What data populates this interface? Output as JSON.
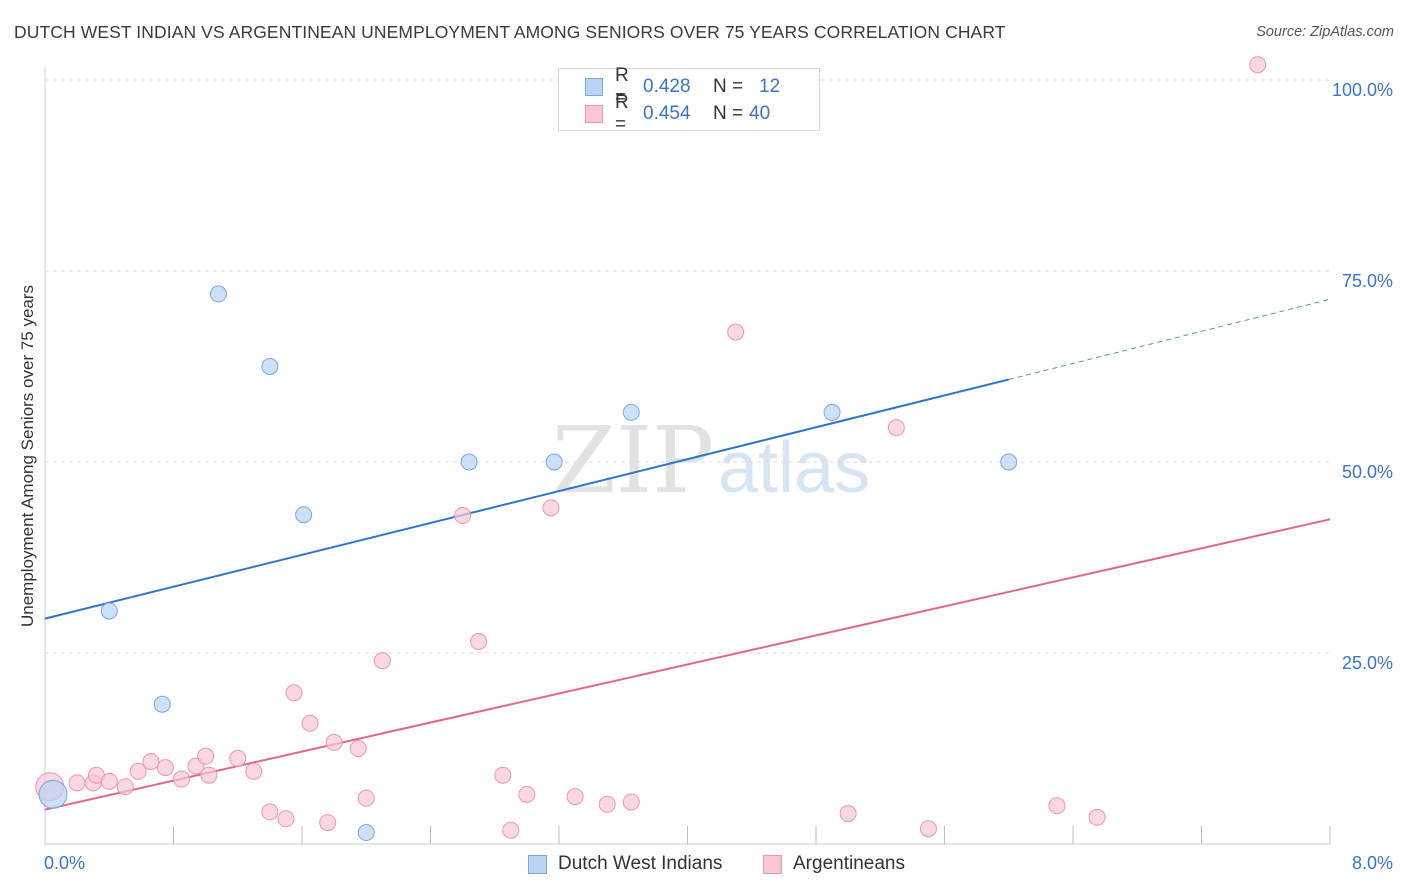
{
  "title": "DUTCH WEST INDIAN VS ARGENTINEAN UNEMPLOYMENT AMONG SENIORS OVER 75 YEARS CORRELATION CHART",
  "source": "Source: ZipAtlas.com",
  "watermark": {
    "zip": "ZIP",
    "atlas": "atlas"
  },
  "legend": {
    "series1": {
      "r_label": "R =",
      "r_value": "0.428",
      "n_label": "N =",
      "n_value": "12"
    },
    "series2": {
      "r_label": "R =",
      "r_value": "0.454",
      "n_label": "N =",
      "n_value": "40"
    }
  },
  "colors": {
    "blue_fill": "#b9d3f3",
    "blue_stroke": "#7aa7de",
    "blue_line": "#2f74c8",
    "pink_fill": "#f9c6d4",
    "pink_stroke": "#ec96b0",
    "pink_line": "#e0668f",
    "grid": "#dddddd",
    "axis_text": "#3a74c4"
  },
  "chart_data": {
    "type": "scatter",
    "title": "DUTCH WEST INDIAN VS ARGENTINEAN UNEMPLOYMENT AMONG SENIORS OVER 75 YEARS CORRELATION CHART",
    "xlabel": "",
    "ylabel": "Unemployment Among Seniors over 75 years",
    "xlim": [
      0,
      8
    ],
    "ylim": [
      0,
      100
    ],
    "x_tick_labels": [
      {
        "value": 0,
        "label": "0.0%"
      },
      {
        "value": 8,
        "label": "8.0%"
      }
    ],
    "x_minor_ticks": [
      0.8,
      1.6,
      2.4,
      3.2,
      4.0,
      4.8,
      5.6,
      6.4,
      7.2,
      8.0
    ],
    "y_ticks": [
      {
        "value": 25,
        "label": "25.0%"
      },
      {
        "value": 50,
        "label": "50.0%"
      },
      {
        "value": 75,
        "label": "75.0%"
      },
      {
        "value": 100,
        "label": "100.0%"
      }
    ],
    "grid": true,
    "legend_position": "top-center",
    "series": [
      {
        "name": "Dutch West Indians",
        "color": "#b9d3f3",
        "points": [
          {
            "x": 0.05,
            "y": 6.5,
            "big": true
          },
          {
            "x": 0.4,
            "y": 30.5
          },
          {
            "x": 0.73,
            "y": 18.3
          },
          {
            "x": 1.08,
            "y": 72.0
          },
          {
            "x": 1.4,
            "y": 62.5
          },
          {
            "x": 1.61,
            "y": 43.1
          },
          {
            "x": 2.0,
            "y": 1.5
          },
          {
            "x": 2.64,
            "y": 50.0
          },
          {
            "x": 3.17,
            "y": 50.0
          },
          {
            "x": 3.65,
            "y": 56.5
          },
          {
            "x": 4.9,
            "y": 56.5
          },
          {
            "x": 6.0,
            "y": 50.0
          }
        ],
        "trend": {
          "x0": 0,
          "y0": 29.5,
          "x1": 6.0,
          "y1": 60.8,
          "x_dash_end": 8.0,
          "y_dash_end": 71.3
        }
      },
      {
        "name": "Argentineans",
        "color": "#f9c6d4",
        "points": [
          {
            "x": 0.03,
            "y": 7.5,
            "big": true
          },
          {
            "x": 0.2,
            "y": 8.0
          },
          {
            "x": 0.3,
            "y": 8.0
          },
          {
            "x": 0.32,
            "y": 9.0
          },
          {
            "x": 0.4,
            "y": 8.2
          },
          {
            "x": 0.5,
            "y": 7.5
          },
          {
            "x": 0.58,
            "y": 9.5
          },
          {
            "x": 0.66,
            "y": 10.8
          },
          {
            "x": 0.75,
            "y": 10.0
          },
          {
            "x": 0.85,
            "y": 8.5
          },
          {
            "x": 0.94,
            "y": 10.2
          },
          {
            "x": 1.0,
            "y": 11.5
          },
          {
            "x": 1.02,
            "y": 9.0
          },
          {
            "x": 1.2,
            "y": 11.2
          },
          {
            "x": 1.3,
            "y": 9.5
          },
          {
            "x": 1.4,
            "y": 4.2
          },
          {
            "x": 1.5,
            "y": 3.3
          },
          {
            "x": 1.55,
            "y": 19.8
          },
          {
            "x": 1.65,
            "y": 15.8
          },
          {
            "x": 1.76,
            "y": 2.8
          },
          {
            "x": 1.8,
            "y": 13.3
          },
          {
            "x": 1.95,
            "y": 12.5
          },
          {
            "x": 2.0,
            "y": 6.0
          },
          {
            "x": 2.1,
            "y": 24.0
          },
          {
            "x": 2.6,
            "y": 43.0
          },
          {
            "x": 2.7,
            "y": 26.5
          },
          {
            "x": 2.85,
            "y": 9.0
          },
          {
            "x": 2.9,
            "y": 1.8
          },
          {
            "x": 3.0,
            "y": 6.5
          },
          {
            "x": 3.15,
            "y": 44.0
          },
          {
            "x": 3.3,
            "y": 6.2
          },
          {
            "x": 3.5,
            "y": 5.2
          },
          {
            "x": 3.65,
            "y": 5.5
          },
          {
            "x": 4.3,
            "y": 67.0
          },
          {
            "x": 5.0,
            "y": 4.0
          },
          {
            "x": 5.3,
            "y": 54.5
          },
          {
            "x": 5.5,
            "y": 2.0
          },
          {
            "x": 6.3,
            "y": 5.0
          },
          {
            "x": 6.55,
            "y": 3.5
          },
          {
            "x": 7.55,
            "y": 102.0
          }
        ],
        "trend": {
          "x0": 0,
          "y0": 4.5,
          "x1": 8.0,
          "y1": 42.5
        }
      }
    ]
  }
}
